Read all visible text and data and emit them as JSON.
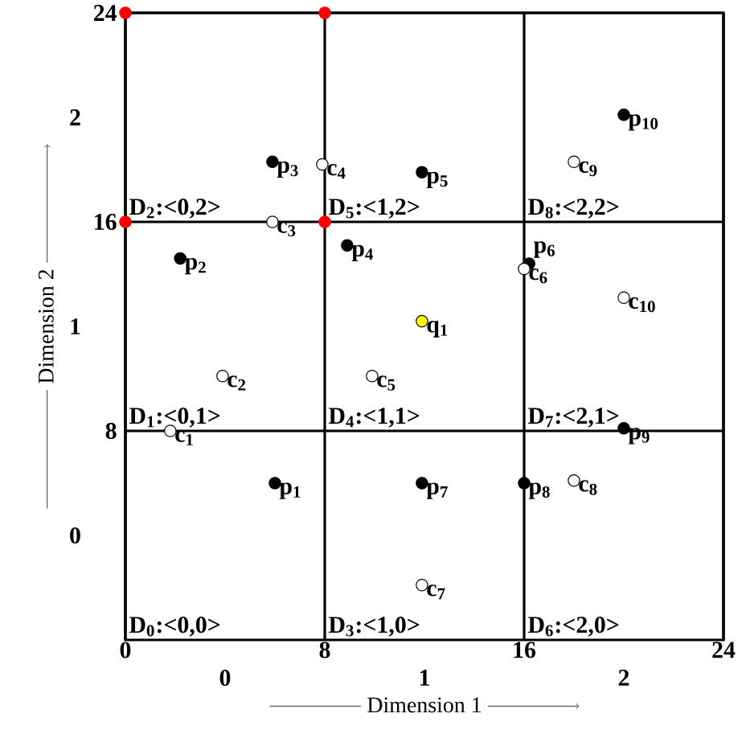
{
  "chart_data": {
    "type": "scatter",
    "xlabel": "Dimension 1",
    "ylabel": "Dimension 2",
    "xlim": [
      0,
      24
    ],
    "ylim": [
      0,
      24
    ],
    "xticks": [
      0,
      8,
      16,
      24
    ],
    "yticks": [
      8,
      16,
      24
    ],
    "grid": true,
    "marker": "circle",
    "series": [
      {
        "color": "#000000",
        "x": [
          6,
          2.2,
          5.9,
          8.9,
          11.9,
          16.2,
          11.9,
          16,
          20,
          20
        ],
        "values": [
          6,
          14.6,
          18.3,
          15.1,
          17.9,
          14.4,
          6,
          6,
          8.1,
          20.1
        ]
      },
      {
        "color": "#ffffff",
        "x": [
          1.8,
          3.9,
          5.9,
          7.9,
          9.9,
          16,
          11.9,
          18,
          18,
          20
        ],
        "values": [
          8,
          10.1,
          16,
          18.2,
          10.1,
          14.2,
          2.1,
          6.1,
          18.3,
          13.1
        ]
      },
      {
        "color": "#ffff00",
        "x": [
          11.9
        ],
        "values": [
          12.2
        ]
      },
      {
        "color": "#ff0000",
        "x": [
          0,
          8,
          0,
          8
        ],
        "values": [
          24,
          24,
          16,
          16
        ]
      }
    ],
    "annotations": [
      "0",
      "1",
      "2",
      "0",
      "1",
      "2",
      "D$_{0}$:<0,0>",
      "D$_{1}$:<0,1>",
      "D$_{2}$:<0,2>",
      "D$_{3}$:<1,0>",
      "D$_{4}$:<1,1>",
      "D$_{5}$:<1,2>",
      "D$_{6}$:<2,0>",
      "D$_{7}$:<2,1>",
      "D$_{8}$:<2,2>",
      {
        "text": "p$_{1}$",
        "x": 6,
        "y": 6
      },
      {
        "text": "p$_{2}$",
        "x": 2.2,
        "y": 14.6
      },
      {
        "text": "p$_{3}$",
        "x": 5.9,
        "y": 18.3
      },
      {
        "text": "p$_{4}$",
        "x": 8.9,
        "y": 15.1
      },
      {
        "text": "p$_{5}$",
        "x": 11.9,
        "y": 17.9
      },
      {
        "text": "c$_{6}$",
        "x": 16,
        "y": 14.2
      },
      {
        "text": "p$_{6}$",
        "x": 16.2,
        "y": 14.4
      },
      {
        "text": "p$_{7}$",
        "x": 11.9,
        "y": 6
      },
      {
        "text": "p$_{8}$",
        "x": 16,
        "y": 6
      },
      {
        "text": "p$_{9}$",
        "x": 20,
        "y": 8.1
      },
      {
        "text": "p$_{10}$",
        "x": 20,
        "y": 20.1
      },
      {
        "text": "c$_{1}$",
        "x": 1.8,
        "y": 8
      },
      {
        "text": "c$_{2}$",
        "x": 3.9,
        "y": 10.1
      },
      {
        "text": "c$_{3}$",
        "x": 5.9,
        "y": 16
      },
      {
        "text": "c$_{4}$",
        "x": 7.9,
        "y": 18.2
      },
      {
        "text": "c$_{5}$",
        "x": 9.9,
        "y": 10.1
      },
      {
        "text": "c$_{7}$",
        "x": 11.9,
        "y": 2.1
      },
      {
        "text": "c$_{8}$",
        "x": 18,
        "y": 6.1
      },
      {
        "text": "c$_{9}$",
        "x": 18,
        "y": 18.3
      },
      {
        "text": "c$_{10}$",
        "x": 20,
        "y": 13.1
      },
      {
        "text": "q$_{1}$",
        "x": 11.9,
        "y": 12.2
      }
    ]
  }
}
